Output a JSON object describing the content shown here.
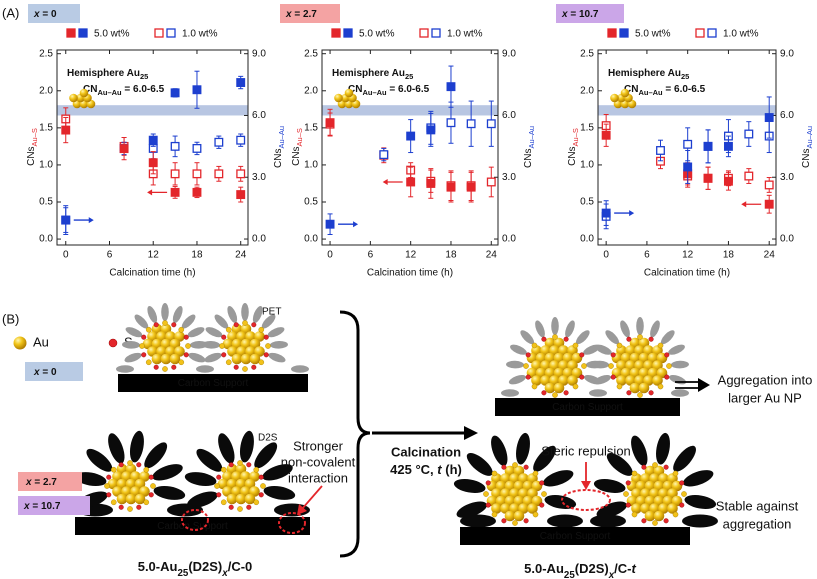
{
  "panel_labels": [
    "(A)",
    "(B)"
  ],
  "chart_data": [
    {
      "type": "scatter",
      "tag": [
        "x",
        " = 0"
      ],
      "tag_color": "#b9cbe4",
      "legend": [
        {
          "label": "5.0 wt%",
          "marker": "filled"
        },
        {
          "label": "1.0 wt%",
          "marker": "open"
        }
      ],
      "x_label": "Calcination time (h)",
      "y_label": [
        "CNs",
        "Au–S"
      ],
      "y2_label": [
        "CNs",
        "Au–Au"
      ],
      "annotation": {
        "title": [
          "Hemisphere Au",
          "25"
        ],
        "range": [
          "CN",
          "Au–Au",
          " = 6.0-6.5"
        ]
      },
      "band": [
        6.0,
        6.5
      ],
      "band_color": "#b8c6e2",
      "x": [
        0,
        8,
        12,
        15,
        18,
        21,
        24
      ],
      "xlim": [
        -1.2,
        25
      ],
      "xticks": [
        0,
        6,
        12,
        18,
        24
      ],
      "ylim": [
        -0.08,
        2.55
      ],
      "yticks": [
        {
          "value": 0,
          "label": "0.0"
        },
        0.5,
        {
          "value": 1,
          "label": "1.0"
        },
        1.5,
        {
          "value": 2,
          "label": "2.0"
        },
        2.5
      ],
      "y2lim": [
        -0.29,
        9.18
      ],
      "y2ticks": [
        {
          "value": 0,
          "label": "0.0"
        },
        {
          "value": 3,
          "label": "3.0"
        },
        {
          "value": 6,
          "label": "6.0"
        },
        {
          "value": 9,
          "label": "9.0"
        }
      ],
      "series": [
        {
          "color": "#e3262b",
          "marker": "open",
          "legend": 1,
          "axis": "y",
          "values": [
            1.62,
            1.25,
            0.88,
            0.88,
            0.88,
            0.88,
            0.88
          ],
          "errors": [
            0.15,
            0.12,
            0.15,
            0.15,
            0.15,
            0.1,
            0.1
          ]
        },
        {
          "color": "#1d3fcf",
          "marker": "open",
          "legend": 1,
          "axis": "y2",
          "values": [
            0.92,
            4.4,
            4.4,
            4.5,
            4.4,
            4.7,
            4.8
          ],
          "errors": [
            0.7,
            0.3,
            0.5,
            0.5,
            0.3,
            0.3,
            0.3
          ]
        },
        {
          "color": "#e3262b",
          "marker": "filled",
          "legend": 0,
          "axis": "y",
          "values": [
            1.47,
            1.22,
            1.03,
            0.63,
            0.63,
            null,
            0.6
          ],
          "errors": [
            0.17,
            0.15,
            0.15,
            0.08,
            0.07,
            null,
            0.1
          ]
        },
        {
          "color": "#1d3fcf",
          "marker": "filled",
          "legend": 0,
          "axis": "y2",
          "values": [
            0.92,
            null,
            4.8,
            7.1,
            7.25,
            null,
            7.6
          ],
          "errors": [
            0.6,
            null,
            0.3,
            0.2,
            0.9,
            null,
            0.3
          ]
        }
      ]
    },
    {
      "type": "scatter",
      "tag": [
        "x",
        " = 2.7"
      ],
      "tag_color": "#f4a3a3",
      "legend": [
        {
          "label": "5.0 wt%",
          "marker": "filled"
        },
        {
          "label": "1.0 wt%",
          "marker": "open"
        }
      ],
      "x_label": "Calcination time (h)",
      "y_label": [
        "CNs",
        "Au–S"
      ],
      "y2_label": [
        "CNs",
        "Au–Au"
      ],
      "annotation": {
        "title": [
          "Hemisphere Au",
          "25"
        ],
        "range": [
          "CN",
          "Au–Au",
          " = 6.0-6.5"
        ]
      },
      "band": [
        6.0,
        6.5
      ],
      "band_color": "#b8c6e2",
      "x": [
        0,
        8,
        12,
        15,
        18,
        21,
        24
      ],
      "xlim": [
        -1.2,
        25
      ],
      "xticks": [
        0,
        6,
        12,
        18,
        24
      ],
      "ylim": [
        -0.08,
        2.55
      ],
      "yticks": [
        {
          "value": 0,
          "label": "0.0"
        },
        0.5,
        {
          "value": 1,
          "label": "1.0"
        },
        1.5,
        {
          "value": 2,
          "label": "2.0"
        },
        2.5
      ],
      "y2lim": [
        -0.29,
        9.18
      ],
      "y2ticks": [
        {
          "value": 0,
          "label": "0.0"
        },
        {
          "value": 3,
          "label": "3.0"
        },
        {
          "value": 6,
          "label": "6.0"
        },
        {
          "value": 9,
          "label": "9.0"
        }
      ],
      "series": [
        {
          "color": "#e3262b",
          "marker": "open",
          "legend": 1,
          "axis": "y",
          "values": [
            1.55,
            1.13,
            0.93,
            0.78,
            0.72,
            0.72,
            0.77
          ],
          "errors": [
            0.15,
            0.1,
            0.1,
            0.15,
            0.2,
            0.2,
            0.2
          ]
        },
        {
          "color": "#1d3fcf",
          "marker": "open",
          "legend": 1,
          "axis": "y2",
          "values": [
            null,
            4.1,
            null,
            5.4,
            5.65,
            5.6,
            5.6
          ],
          "errors": [
            null,
            0.3,
            null,
            0.8,
            1.0,
            1.1,
            1.1
          ]
        },
        {
          "color": "#e3262b",
          "marker": "filled",
          "legend": 0,
          "axis": "y",
          "values": [
            1.57,
            null,
            0.77,
            0.75,
            0.7,
            0.7,
            null
          ],
          "errors": [
            0.18,
            null,
            0.2,
            0.2,
            0.2,
            0.2,
            null
          ]
        },
        {
          "color": "#1d3fcf",
          "marker": "filled",
          "legend": 0,
          "axis": "y2",
          "values": [
            0.72,
            null,
            5.0,
            5.3,
            7.4,
            null,
            null
          ],
          "errors": [
            0.5,
            null,
            0.8,
            0.8,
            1.0,
            null,
            null
          ]
        }
      ]
    },
    {
      "type": "scatter",
      "tag": [
        "x",
        " = 10.7"
      ],
      "tag_color": "#cba6e8",
      "legend": [
        {
          "label": "5.0 wt%",
          "marker": "filled"
        },
        {
          "label": "1.0 wt%",
          "marker": "open"
        }
      ],
      "x_label": "Calcination time (h)",
      "y_label": [
        "CNs",
        "Au–S"
      ],
      "y2_label": [
        "CNs",
        "Au–Au"
      ],
      "annotation": {
        "title": [
          "Hemisphere Au",
          "25"
        ],
        "range": [
          "CN",
          "Au–Au",
          " = 6.0-6.5"
        ]
      },
      "band": [
        6.0,
        6.5
      ],
      "band_color": "#b8c6e2",
      "x": [
        0,
        8,
        12,
        15,
        18,
        21,
        24
      ],
      "xlim": [
        -1.2,
        25
      ],
      "xticks": [
        0,
        6,
        12,
        18,
        24
      ],
      "ylim": [
        -0.08,
        2.55
      ],
      "yticks": [
        {
          "value": 0,
          "label": "0.0"
        },
        0.5,
        {
          "value": 1,
          "label": "1.0"
        },
        1.5,
        {
          "value": 2,
          "label": "2.0"
        },
        2.5
      ],
      "y2lim": [
        -0.29,
        9.18
      ],
      "y2ticks": [
        {
          "value": 0,
          "label": "0.0"
        },
        {
          "value": 3,
          "label": "3.0"
        },
        {
          "value": 6,
          "label": "6.0"
        },
        {
          "value": 9,
          "label": "9.0"
        }
      ],
      "series": [
        {
          "color": "#e3262b",
          "marker": "open",
          "legend": 1,
          "axis": "y",
          "values": [
            1.53,
            1.05,
            0.85,
            0.82,
            0.82,
            0.85,
            0.73
          ],
          "errors": [
            0.15,
            0.1,
            0.15,
            0.15,
            0.1,
            0.1,
            0.1
          ]
        },
        {
          "color": "#1d3fcf",
          "marker": "open",
          "legend": 1,
          "axis": "y2",
          "values": [
            1.1,
            4.3,
            4.6,
            4.5,
            5.0,
            5.1,
            5.0
          ],
          "errors": [
            0.6,
            0.5,
            0.8,
            0.8,
            0.8,
            0.6,
            0.8
          ]
        },
        {
          "color": "#e3262b",
          "marker": "filled",
          "legend": 0,
          "axis": "y",
          "values": [
            1.4,
            null,
            0.88,
            0.82,
            0.78,
            null,
            0.47
          ],
          "errors": [
            0.15,
            null,
            0.15,
            0.15,
            0.12,
            null,
            0.12
          ]
        },
        {
          "color": "#1d3fcf",
          "marker": "filled",
          "legend": 0,
          "axis": "y2",
          "values": [
            1.26,
            null,
            3.5,
            4.5,
            4.5,
            null,
            5.9
          ],
          "errors": [
            0.6,
            null,
            0.8,
            0.8,
            0.5,
            null,
            1.0
          ]
        }
      ]
    }
  ],
  "diagram": {
    "legend": [
      "Au",
      "S"
    ],
    "ligands": [
      "PET",
      "D2S"
    ],
    "support": "Carbon Support",
    "tags": [
      [
        "x",
        " = 0"
      ],
      [
        "x",
        " = 2.7"
      ],
      [
        "x",
        " = 10.7"
      ]
    ],
    "interaction": [
      "Stronger",
      "non-covalent",
      "interaction"
    ],
    "calcination": "Calcination",
    "conditions": [
      "425 °C, ",
      "t",
      " (h)"
    ],
    "aggregation": [
      "Aggregation into",
      "larger Au NP"
    ],
    "repulsion": "Steric repulsion",
    "stable": [
      "Stable against",
      "aggregation"
    ],
    "caption_before": [
      "5.0-Au",
      "25",
      "(D2S)",
      "x",
      "/C-0"
    ],
    "caption_after": [
      "5.0-Au",
      "25",
      "(D2S)",
      "x",
      "/C-",
      "t"
    ]
  }
}
